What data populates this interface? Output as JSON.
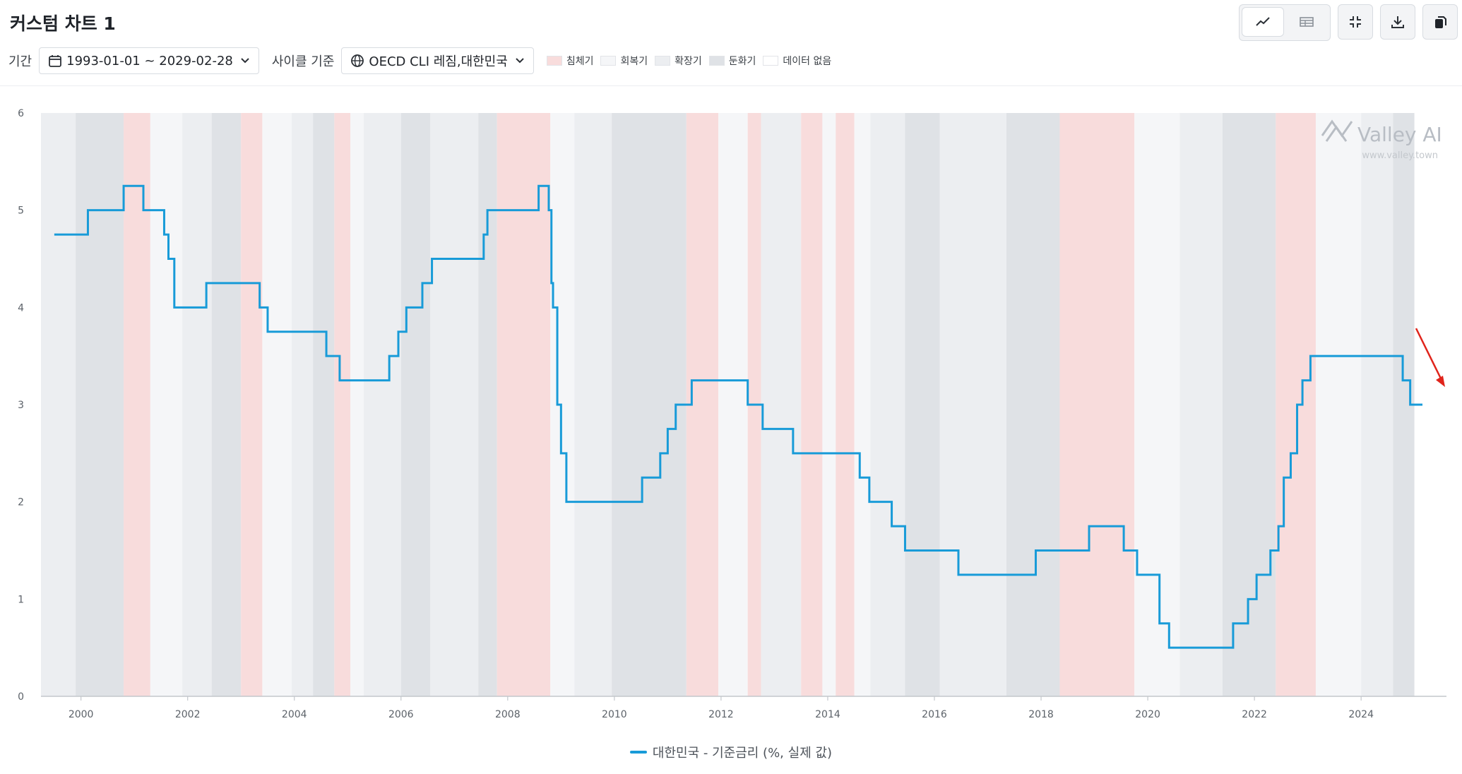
{
  "header": {
    "title": "커스텀 차트 1",
    "period_label": "기간",
    "period_value": "1993-01-01 ~ 2029-02-28",
    "cycle_label": "사이클 기준",
    "cycle_value": "OECD CLI 레짐,대한민국",
    "regimes": [
      {
        "label": "침체기",
        "color": "#f8dcdc"
      },
      {
        "label": "회복기",
        "color": "#f5f6f8"
      },
      {
        "label": "확장기",
        "color": "#eceef1"
      },
      {
        "label": "둔화기",
        "color": "#dfe2e6"
      },
      {
        "label": "데이터 없음",
        "color": "#ffffff"
      }
    ]
  },
  "toolbar": {
    "line_view_icon": "line-chart-icon",
    "table_view_icon": "table-icon",
    "collapse_icon": "collapse-icon",
    "download_icon": "download-icon",
    "copy_icon": "copy-icon"
  },
  "watermark": {
    "brand": "Valley AI",
    "url": "www.valley.town"
  },
  "chart_data": {
    "type": "line",
    "step": true,
    "title": "",
    "xlabel": "",
    "ylabel": "",
    "xlim": [
      1999.25,
      2025.6
    ],
    "ylim": [
      0,
      6
    ],
    "y_ticks": [
      0,
      1,
      2,
      3,
      4,
      5,
      6
    ],
    "x_ticks": [
      2000,
      2002,
      2004,
      2006,
      2008,
      2010,
      2012,
      2014,
      2016,
      2018,
      2020,
      2022,
      2024
    ],
    "grid": false,
    "legend_position": "bottom",
    "series": [
      {
        "name": "대한민국 - 기준금리 (%, 실제 값)",
        "color": "#189bd8",
        "points": [
          [
            1999.5,
            4.75
          ],
          [
            2000.13,
            5.0
          ],
          [
            2000.8,
            5.25
          ],
          [
            2001.17,
            5.0
          ],
          [
            2001.56,
            4.75
          ],
          [
            2001.64,
            4.5
          ],
          [
            2001.75,
            4.0
          ],
          [
            2002.35,
            4.25
          ],
          [
            2003.35,
            4.0
          ],
          [
            2003.5,
            3.75
          ],
          [
            2004.6,
            3.5
          ],
          [
            2004.85,
            3.25
          ],
          [
            2005.78,
            3.5
          ],
          [
            2005.95,
            3.75
          ],
          [
            2006.1,
            4.0
          ],
          [
            2006.4,
            4.25
          ],
          [
            2006.58,
            4.5
          ],
          [
            2007.55,
            4.75
          ],
          [
            2007.62,
            5.0
          ],
          [
            2008.58,
            5.25
          ],
          [
            2008.77,
            5.0
          ],
          [
            2008.82,
            4.25
          ],
          [
            2008.85,
            4.0
          ],
          [
            2008.93,
            3.0
          ],
          [
            2009.0,
            2.5
          ],
          [
            2009.1,
            2.0
          ],
          [
            2010.52,
            2.25
          ],
          [
            2010.86,
            2.5
          ],
          [
            2011.0,
            2.75
          ],
          [
            2011.15,
            3.0
          ],
          [
            2011.45,
            3.25
          ],
          [
            2012.5,
            3.0
          ],
          [
            2012.78,
            2.75
          ],
          [
            2013.35,
            2.5
          ],
          [
            2014.6,
            2.25
          ],
          [
            2014.78,
            2.0
          ],
          [
            2015.2,
            1.75
          ],
          [
            2015.45,
            1.5
          ],
          [
            2016.45,
            1.25
          ],
          [
            2017.9,
            1.5
          ],
          [
            2018.9,
            1.75
          ],
          [
            2019.55,
            1.5
          ],
          [
            2019.8,
            1.25
          ],
          [
            2020.22,
            0.75
          ],
          [
            2020.4,
            0.5
          ],
          [
            2021.6,
            0.75
          ],
          [
            2021.88,
            1.0
          ],
          [
            2022.04,
            1.25
          ],
          [
            2022.3,
            1.5
          ],
          [
            2022.45,
            1.75
          ],
          [
            2022.55,
            2.25
          ],
          [
            2022.68,
            2.5
          ],
          [
            2022.8,
            3.0
          ],
          [
            2022.9,
            3.25
          ],
          [
            2023.05,
            3.5
          ],
          [
            2024.78,
            3.25
          ],
          [
            2024.92,
            3.0
          ],
          [
            2025.15,
            3.0
          ]
        ]
      }
    ],
    "regime_bands": [
      {
        "from": 1999.25,
        "to": 1999.9,
        "regime": "확장기"
      },
      {
        "from": 1999.9,
        "to": 2000.8,
        "regime": "둔화기"
      },
      {
        "from": 2000.8,
        "to": 2001.3,
        "regime": "침체기"
      },
      {
        "from": 2001.3,
        "to": 2001.9,
        "regime": "회복기"
      },
      {
        "from": 2001.9,
        "to": 2002.45,
        "regime": "확장기"
      },
      {
        "from": 2002.45,
        "to": 2003.0,
        "regime": "둔화기"
      },
      {
        "from": 2003.0,
        "to": 2003.4,
        "regime": "침체기"
      },
      {
        "from": 2003.4,
        "to": 2003.95,
        "regime": "회복기"
      },
      {
        "from": 2003.95,
        "to": 2004.35,
        "regime": "확장기"
      },
      {
        "from": 2004.35,
        "to": 2004.75,
        "regime": "둔화기"
      },
      {
        "from": 2004.75,
        "to": 2005.05,
        "regime": "침체기"
      },
      {
        "from": 2005.05,
        "to": 2005.3,
        "regime": "회복기"
      },
      {
        "from": 2005.3,
        "to": 2006.0,
        "regime": "확장기"
      },
      {
        "from": 2006.0,
        "to": 2006.55,
        "regime": "둔화기"
      },
      {
        "from": 2006.55,
        "to": 2007.45,
        "regime": "확장기"
      },
      {
        "from": 2007.45,
        "to": 2007.8,
        "regime": "둔화기"
      },
      {
        "from": 2007.8,
        "to": 2008.8,
        "regime": "침체기"
      },
      {
        "from": 2008.8,
        "to": 2009.25,
        "regime": "회복기"
      },
      {
        "from": 2009.25,
        "to": 2009.95,
        "regime": "확장기"
      },
      {
        "from": 2009.95,
        "to": 2011.35,
        "regime": "둔화기"
      },
      {
        "from": 2011.35,
        "to": 2011.95,
        "regime": "침체기"
      },
      {
        "from": 2011.95,
        "to": 2012.5,
        "regime": "회복기"
      },
      {
        "from": 2012.5,
        "to": 2012.75,
        "regime": "침체기"
      },
      {
        "from": 2012.75,
        "to": 2013.5,
        "regime": "확장기"
      },
      {
        "from": 2013.5,
        "to": 2013.9,
        "regime": "침체기"
      },
      {
        "from": 2013.9,
        "to": 2014.15,
        "regime": "회복기"
      },
      {
        "from": 2014.15,
        "to": 2014.5,
        "regime": "침체기"
      },
      {
        "from": 2014.5,
        "to": 2014.8,
        "regime": "회복기"
      },
      {
        "from": 2014.8,
        "to": 2015.45,
        "regime": "확장기"
      },
      {
        "from": 2015.45,
        "to": 2016.1,
        "regime": "둔화기"
      },
      {
        "from": 2016.1,
        "to": 2017.35,
        "regime": "확장기"
      },
      {
        "from": 2017.35,
        "to": 2018.35,
        "regime": "둔화기"
      },
      {
        "from": 2018.35,
        "to": 2019.75,
        "regime": "침체기"
      },
      {
        "from": 2019.75,
        "to": 2020.6,
        "regime": "회복기"
      },
      {
        "from": 2020.6,
        "to": 2021.4,
        "regime": "확장기"
      },
      {
        "from": 2021.4,
        "to": 2022.4,
        "regime": "둔화기"
      },
      {
        "from": 2022.4,
        "to": 2023.15,
        "regime": "침체기"
      },
      {
        "from": 2023.15,
        "to": 2024.0,
        "regime": "회복기"
      },
      {
        "from": 2024.0,
        "to": 2024.6,
        "regime": "확장기"
      },
      {
        "from": 2024.6,
        "to": 2025.0,
        "regime": "둔화기"
      },
      {
        "from": 2025.0,
        "to": 2025.6,
        "regime": "데이터 없음"
      }
    ]
  }
}
